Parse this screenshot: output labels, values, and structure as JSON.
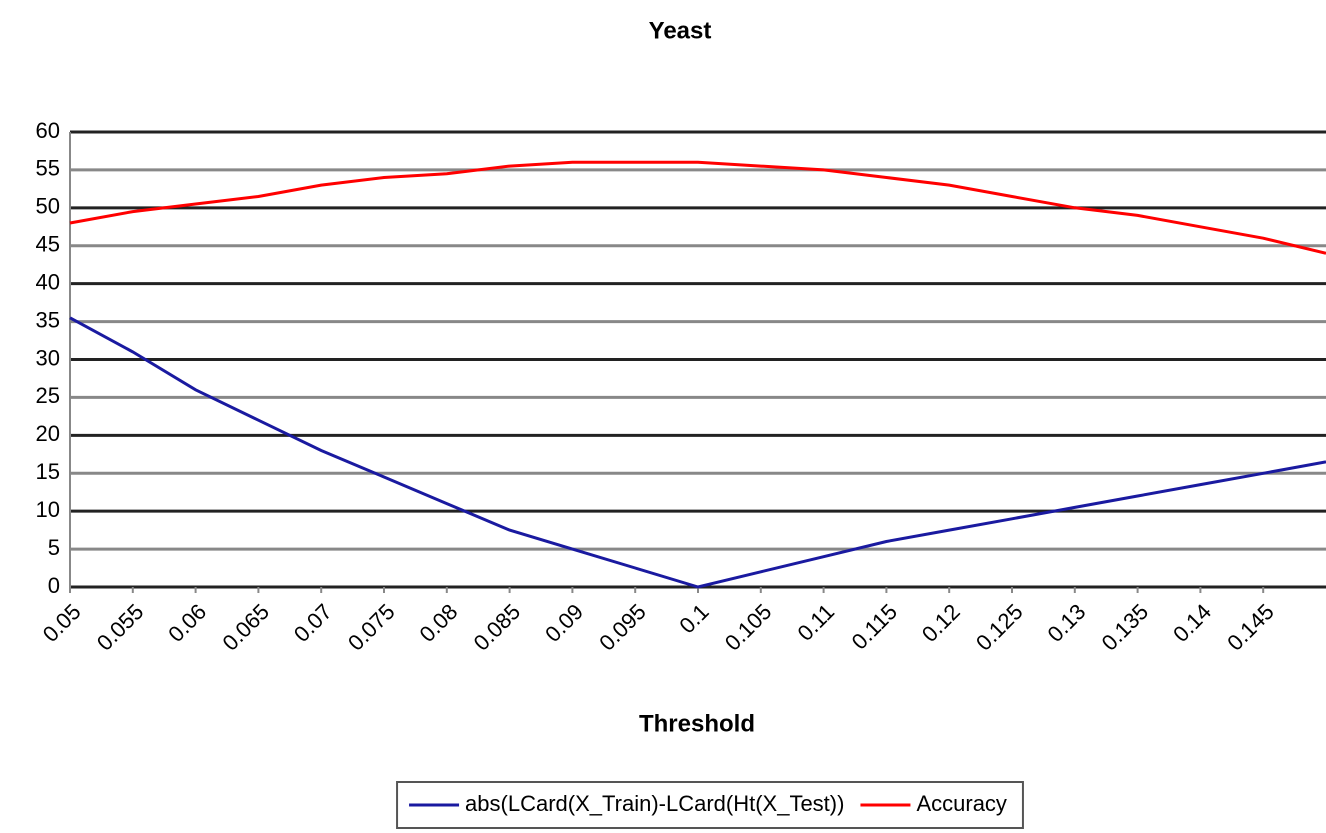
{
  "chart_data": {
    "type": "line",
    "title": "Yeast",
    "x_label": "Threshold",
    "x": [
      0.05,
      0.055,
      0.06,
      0.065,
      0.07,
      0.075,
      0.08,
      0.085,
      0.09,
      0.095,
      0.1,
      0.105,
      0.11,
      0.115,
      0.12,
      0.125,
      0.13,
      0.135,
      0.14,
      0.145,
      0.15
    ],
    "xlim": [
      0.05,
      0.15
    ],
    "xticks": [
      0.05,
      0.055,
      0.06,
      0.065,
      0.07,
      0.075,
      0.08,
      0.085,
      0.09,
      0.095,
      0.1,
      0.105,
      0.11,
      0.115,
      0.12,
      0.125,
      0.13,
      0.135,
      0.14,
      0.145
    ],
    "ylim": [
      0,
      60
    ],
    "yticks": [
      0,
      5,
      10,
      15,
      20,
      25,
      30,
      35,
      40,
      45,
      50,
      55,
      60
    ],
    "grid": true,
    "legend": "bottom",
    "series": [
      {
        "name": "abs(LCard(X_Train)-LCard(Ht(X_Test))",
        "color": "#1a1aa0",
        "values": [
          35.5,
          31,
          26,
          22,
          18,
          14.5,
          11,
          7.5,
          5,
          2.5,
          0,
          2,
          4,
          6,
          7.5,
          9,
          10.5,
          12,
          13.5,
          15,
          16.5
        ]
      },
      {
        "name": "Accuracy",
        "color": "#ff0000",
        "values": [
          48,
          49.5,
          50.5,
          51.5,
          53,
          54,
          54.5,
          55.5,
          56,
          56,
          56,
          55.5,
          55,
          54,
          53,
          51.5,
          50,
          49,
          47.5,
          46,
          44
        ]
      }
    ]
  }
}
